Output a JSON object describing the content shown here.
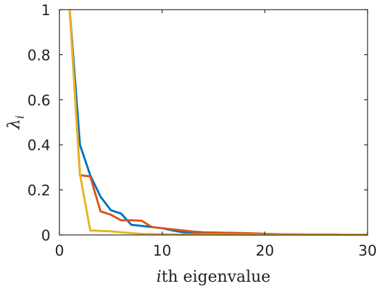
{
  "chart_data": {
    "type": "line",
    "title": "",
    "xlabel": {
      "italic": "i",
      "rest": "th eigenvalue"
    },
    "ylabel": {
      "symbol": "λ",
      "subscript": "i"
    },
    "xlim": [
      0,
      30
    ],
    "ylim": [
      0,
      1
    ],
    "xticks": [
      0,
      10,
      20,
      30
    ],
    "yticks": [
      0,
      0.2,
      0.4,
      0.6,
      0.8,
      1
    ],
    "xtick_labels": [
      "0",
      "10",
      "20",
      "30"
    ],
    "ytick_labels": [
      "0",
      "0.2",
      "0.4",
      "0.6",
      "0.8",
      "1"
    ],
    "grid": false,
    "series": [
      {
        "color": "#0072BD",
        "x": [
          1,
          2,
          3,
          4,
          5,
          6,
          7,
          8,
          9,
          10,
          11,
          12,
          13,
          14,
          15,
          16,
          17,
          18,
          19,
          20,
          21,
          22,
          23,
          24,
          25,
          26,
          27,
          28,
          29,
          30
        ],
        "values": [
          1.0,
          0.4,
          0.265,
          0.17,
          0.11,
          0.095,
          0.045,
          0.04,
          0.035,
          0.03,
          0.02,
          0.012,
          0.01,
          0.009,
          0.008,
          0.007,
          0.006,
          0.005,
          0.005,
          0.004,
          0.003,
          0.003,
          0.003,
          0.002,
          0.002,
          0.002,
          0.002,
          0.001,
          0.001,
          0.001
        ]
      },
      {
        "color": "#D95319",
        "x": [
          1,
          2,
          3,
          4,
          5,
          6,
          7,
          8,
          9,
          10,
          11,
          12,
          13,
          14,
          15,
          16,
          17,
          18,
          19,
          20,
          21,
          22,
          23,
          24,
          25,
          26,
          27,
          28,
          29,
          30
        ],
        "values": [
          1.0,
          0.265,
          0.26,
          0.105,
          0.09,
          0.065,
          0.065,
          0.063,
          0.035,
          0.03,
          0.025,
          0.02,
          0.015,
          0.012,
          0.011,
          0.01,
          0.009,
          0.008,
          0.007,
          0.005,
          0.004,
          0.003,
          0.003,
          0.002,
          0.002,
          0.002,
          0.002,
          0.001,
          0.001,
          0.001
        ]
      },
      {
        "color": "#EDB120",
        "x": [
          1,
          2,
          3,
          4,
          5,
          6,
          7,
          8,
          9,
          10,
          11,
          12,
          13,
          14,
          15,
          16,
          17,
          18,
          19,
          20,
          21,
          22,
          23,
          24,
          25,
          26,
          27,
          28,
          29,
          30
        ],
        "values": [
          1.0,
          0.27,
          0.02,
          0.018,
          0.016,
          0.012,
          0.008,
          0.005,
          0.004,
          0.003,
          0.003,
          0.002,
          0.002,
          0.002,
          0.002,
          0.001,
          0.001,
          0.001,
          0.001,
          0.001,
          0.001,
          0.001,
          0.001,
          0.001,
          0.001,
          0.001,
          0.001,
          0.001,
          0.001,
          0.001
        ]
      }
    ]
  }
}
